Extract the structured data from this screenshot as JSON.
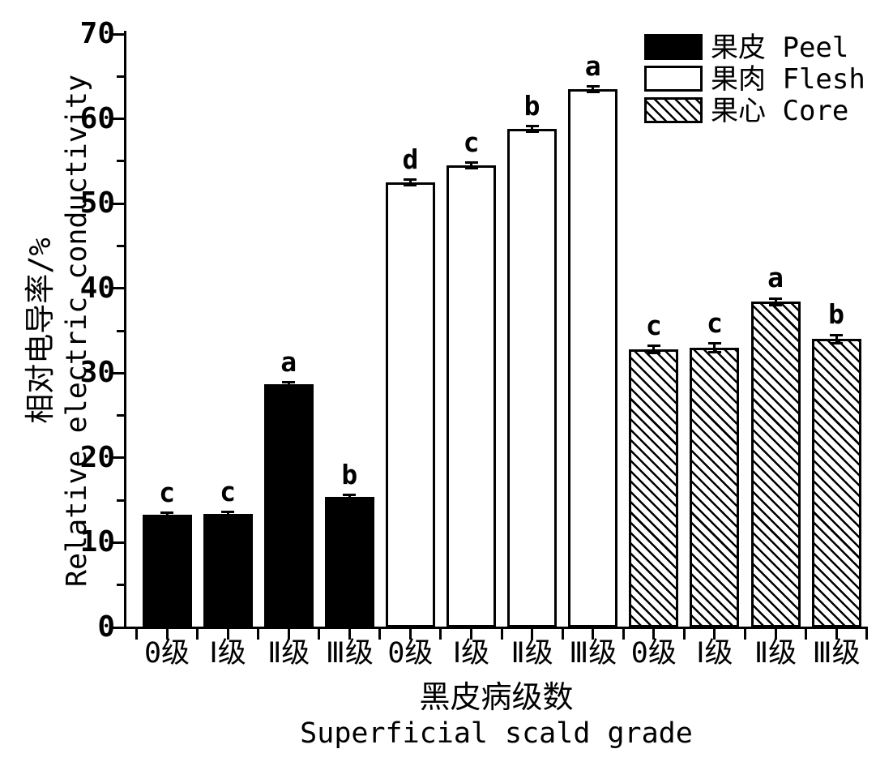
{
  "chart_data": {
    "type": "bar",
    "title": "",
    "ylabel_zh": "相对电导率/%",
    "ylabel_en": "Relative electric conductivity",
    "xlabel_zh": "黑皮病级数",
    "xlabel_en": "Superficial scald grade",
    "ylim": [
      0,
      70
    ],
    "yticks": [
      0,
      10,
      20,
      30,
      40,
      50,
      60,
      70
    ],
    "minor_ytick_step": 5,
    "grid": false,
    "legend_position": "top-right",
    "categories": [
      "0级",
      "Ⅰ级",
      "Ⅱ级",
      "Ⅲ级"
    ],
    "series": [
      {
        "name": "果皮 Peel",
        "fill": "black",
        "values": [
          13.3,
          13.4,
          28.7,
          15.4
        ],
        "errors": [
          0.2,
          0.2,
          0.2,
          0.2
        ],
        "sig_letters": [
          "c",
          "c",
          "a",
          "b"
        ]
      },
      {
        "name": "果肉 Flesh",
        "fill": "white",
        "values": [
          52.5,
          54.5,
          58.8,
          63.5
        ],
        "errors": [
          0.3,
          0.3,
          0.3,
          0.3
        ],
        "sig_letters": [
          "d",
          "c",
          "b",
          "a"
        ]
      },
      {
        "name": "果心 Core",
        "fill": "hatch",
        "values": [
          32.8,
          33.0,
          38.4,
          34.0
        ],
        "errors": [
          0.4,
          0.5,
          0.4,
          0.5
        ],
        "sig_letters": [
          "c",
          "c",
          "a",
          "b"
        ]
      }
    ],
    "legend": [
      {
        "label": "果皮 Peel",
        "fill": "black"
      },
      {
        "label": "果肉 Flesh",
        "fill": "white"
      },
      {
        "label": "果心 Core",
        "fill": "hatch"
      }
    ],
    "colors": {
      "foreground": "#000000",
      "background": "#ffffff"
    }
  }
}
